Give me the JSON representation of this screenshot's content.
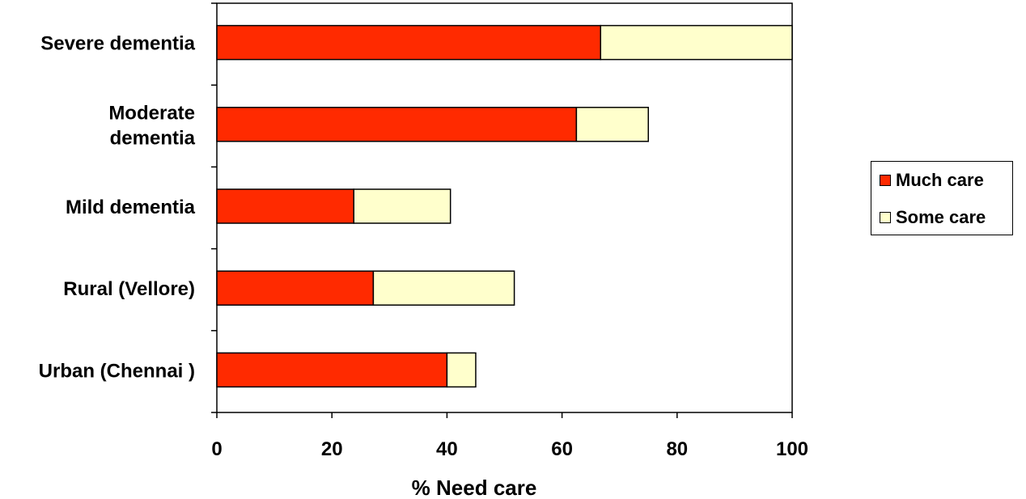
{
  "chart_data": {
    "type": "bar",
    "orientation": "horizontal",
    "stacked": true,
    "categories": [
      "Severe dementia",
      "Moderate dementia",
      "Mild dementia",
      "Rural (Vellore)",
      "Urban (Chennai  )"
    ],
    "category_lines": [
      [
        "Severe dementia"
      ],
      [
        "Moderate",
        "dementia"
      ],
      [
        "Mild dementia"
      ],
      [
        "Rural (Vellore)"
      ],
      [
        "Urban (Chennai  )"
      ]
    ],
    "series": [
      {
        "name": "Much care",
        "values": [
          66.7,
          62.5,
          23.8,
          27.2,
          40.0
        ],
        "color": "#ff2a00"
      },
      {
        "name": "Some care",
        "values": [
          33.3,
          12.5,
          16.8,
          24.5,
          5.0
        ],
        "color": "#ffffcc"
      }
    ],
    "xlabel": "% Need care",
    "xlim": [
      0,
      100
    ],
    "xticks": [
      "0",
      "20",
      "40",
      "60",
      "80",
      "100"
    ],
    "legend_position": "right",
    "grid": false
  }
}
